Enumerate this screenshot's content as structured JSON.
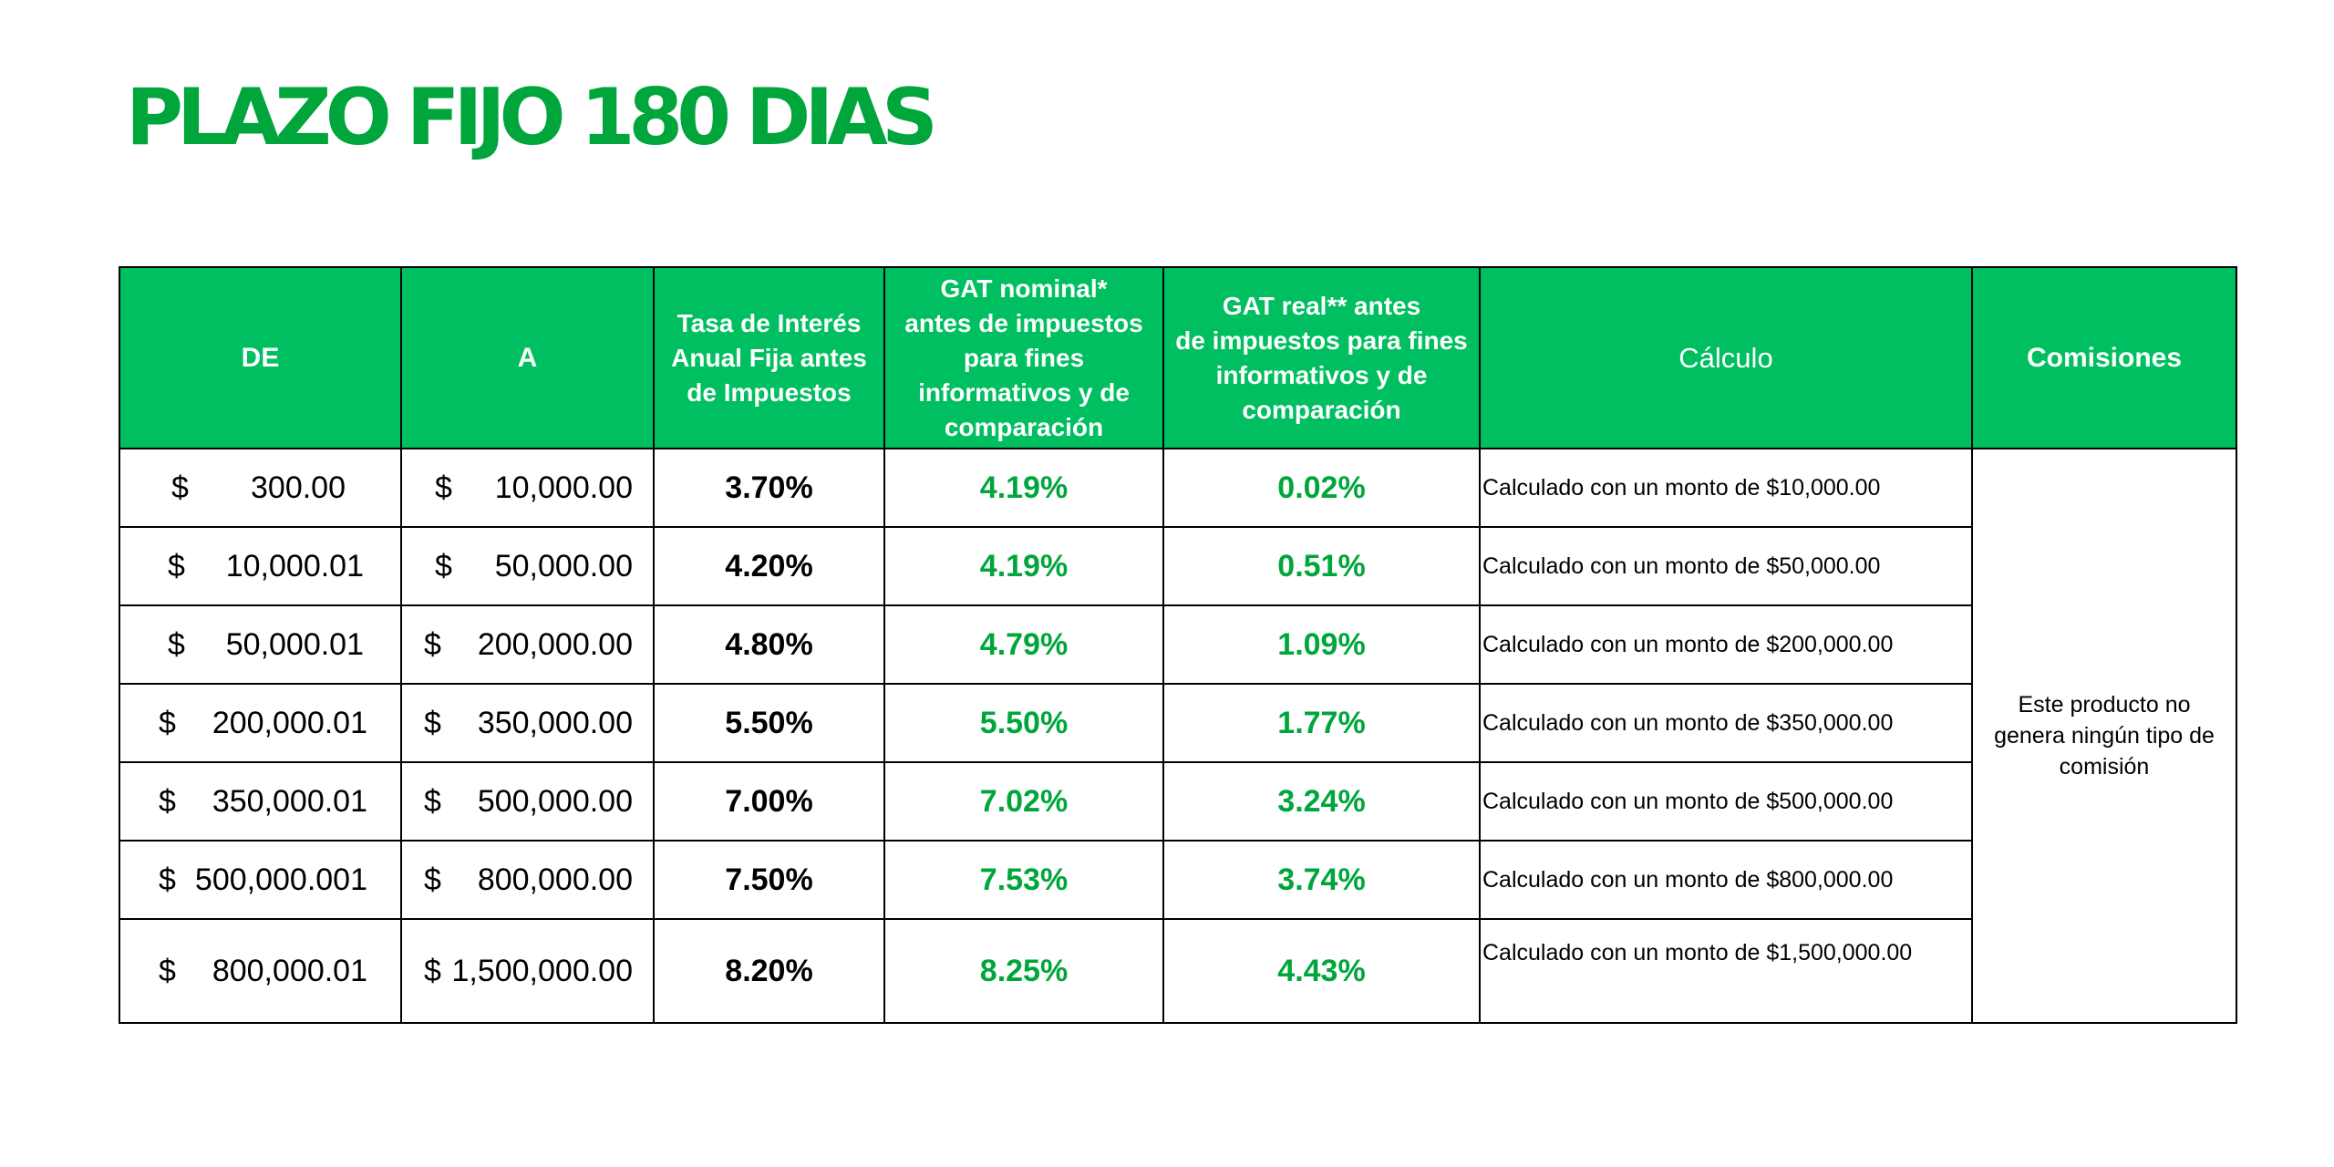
{
  "title": "PLAZO FIJO 180 DIAS",
  "colors": {
    "title_green": "#00a63c",
    "header_bg": "#00bf60",
    "value_green": "#00a63c"
  },
  "headers": {
    "de": "DE",
    "a": "A",
    "tasa_lines": [
      "Tasa de Interés",
      "Anual Fija antes",
      "de Impuestos"
    ],
    "gat_nominal_lines": [
      "GAT nominal*",
      "antes de impuestos",
      "para fines",
      "informativos y de",
      "comparación"
    ],
    "gat_real_lines": [
      "GAT real** antes",
      "de impuestos para fines",
      "informativos y de",
      "comparación"
    ],
    "calculo": "Cálculo",
    "comisiones": "Comisiones"
  },
  "rows": [
    {
      "de_sym": "$",
      "de": "300.00",
      "a_sym": "$",
      "a": "10,000.00",
      "tasa": "3.70%",
      "gat_nominal": "4.19%",
      "gat_real": "0.02%",
      "calculo": "Calculado con un monto de $10,000.00"
    },
    {
      "de_sym": "$",
      "de": "10,000.01",
      "a_sym": "$",
      "a": "50,000.00",
      "tasa": "4.20%",
      "gat_nominal": "4.19%",
      "gat_real": "0.51%",
      "calculo": "Calculado con un monto de $50,000.00"
    },
    {
      "de_sym": "$",
      "de": "50,000.01",
      "a_sym": "$",
      "a": "200,000.00",
      "tasa": "4.80%",
      "gat_nominal": "4.79%",
      "gat_real": "1.09%",
      "calculo": "Calculado con un monto de $200,000.00"
    },
    {
      "de_sym": "$",
      "de": "200,000.01",
      "a_sym": "$",
      "a": "350,000.00",
      "tasa": "5.50%",
      "gat_nominal": "5.50%",
      "gat_real": "1.77%",
      "calculo": "Calculado con un monto de $350,000.00"
    },
    {
      "de_sym": "$",
      "de": "350,000.01",
      "a_sym": "$",
      "a": "500,000.00",
      "tasa": "7.00%",
      "gat_nominal": "7.02%",
      "gat_real": "3.24%",
      "calculo": "Calculado con un monto de $500,000.00"
    },
    {
      "de_sym": "$",
      "de": "500,000.001",
      "a_sym": "$",
      "a": "800,000.00",
      "tasa": "7.50%",
      "gat_nominal": "7.53%",
      "gat_real": "3.74%",
      "calculo": "Calculado con un monto de $800,000.00"
    },
    {
      "de_sym": "$",
      "de": "800,000.01",
      "a_sym": "$",
      "a": "1,500,000.00",
      "tasa": "8.20%",
      "gat_nominal": "8.25%",
      "gat_real": "4.43%",
      "calculo": "Calculado con un monto de $1,500,000.00"
    }
  ],
  "comisiones_text_lines": [
    "Este producto no",
    "genera ningún tipo de",
    "comisión"
  ]
}
